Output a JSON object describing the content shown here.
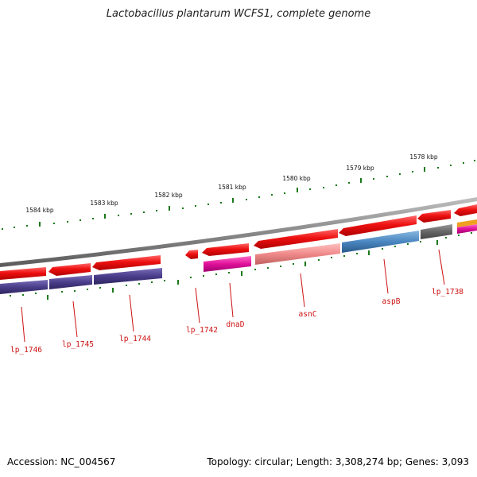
{
  "title": "Lactobacillus plantarum WCFS1, complete genome",
  "footer": {
    "accession": "Accession: NC_004567",
    "topology": "Topology: circular; Length: 3,308,274 bp; Genes: 3,093"
  },
  "kbp_labels": [
    "1584 kbp",
    "1583 kbp",
    "1582 kbp",
    "1581 kbp",
    "1580 kbp",
    "1579 kbp",
    "1578 kbp"
  ],
  "gene_labels": [
    "lp_1746",
    "lp_1745",
    "lp_1744",
    "lp_1742",
    "dnaD",
    "asnC",
    "aspB",
    "lp_1738"
  ],
  "colors": {
    "backbone": "#8a8a8a",
    "cds": "#ee1111",
    "gene_label": "#cc1111",
    "tick": "#1a7a1a",
    "purple": "#4a3d8a",
    "magenta": "#e0119a",
    "salmon": "#f08a8a",
    "steelblue": "#4a86c0",
    "gray": "#666666",
    "orange": "#f0a020"
  }
}
